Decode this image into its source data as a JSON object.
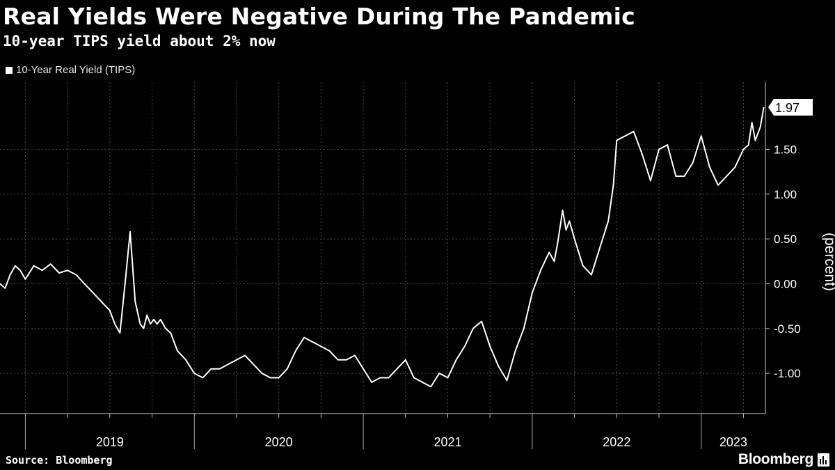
{
  "chart_data": {
    "type": "line",
    "title": "Real Yields Were Negative During The Pandemic",
    "subtitle": "10-year TIPS yield about 2% now",
    "ylabel": "(percent)",
    "xlabel": "",
    "source": "Source: Bloomberg",
    "brand": "Bloomberg",
    "ylim": [
      -1.45,
      2.25
    ],
    "xlim": [
      2018.85,
      2023.38
    ],
    "y_ticks": [
      1.5,
      1.0,
      0.5,
      0.0,
      -0.5,
      -1.0
    ],
    "y_tick_labels": [
      "1.50",
      "1.00",
      "0.50",
      "0.00",
      "-0.50",
      "-1.00"
    ],
    "x_year_labels": [
      {
        "label": "2019",
        "x": 2019.0
      },
      {
        "label": "2020",
        "x": 2020.0
      },
      {
        "label": "2021",
        "x": 2021.0
      },
      {
        "label": "2022",
        "x": 2022.0
      },
      {
        "label": "2023",
        "x": 2023.0
      }
    ],
    "x_year_dividers": [
      2019.0,
      2020.0,
      2021.0,
      2022.0,
      2023.0
    ],
    "x_quarter_gridlines": [
      2019.25,
      2019.5,
      2019.75,
      2020.25,
      2020.5,
      2020.75,
      2021.25,
      2021.5,
      2021.75,
      2022.25,
      2022.5,
      2022.75,
      2023.25
    ],
    "last_value_label": "1.97",
    "grid": true,
    "legend_position": "top-left",
    "colors": {
      "background": "#000000",
      "line": "#ffffff",
      "grid": "#4a4a4a"
    },
    "series": [
      {
        "name": "10-Year Real Yield (TIPS)",
        "x": [
          2018.85,
          2018.88,
          2018.91,
          2018.94,
          2018.97,
          2019.0,
          2019.05,
          2019.1,
          2019.15,
          2019.2,
          2019.25,
          2019.3,
          2019.35,
          2019.4,
          2019.45,
          2019.5,
          2019.53,
          2019.56,
          2019.59,
          2019.62,
          2019.65,
          2019.68,
          2019.7,
          2019.72,
          2019.74,
          2019.76,
          2019.78,
          2019.8,
          2019.83,
          2019.86,
          2019.9,
          2019.95,
          2020.0,
          2020.05,
          2020.1,
          2020.15,
          2020.2,
          2020.25,
          2020.3,
          2020.35,
          2020.4,
          2020.45,
          2020.5,
          2020.55,
          2020.6,
          2020.65,
          2020.7,
          2020.75,
          2020.8,
          2020.85,
          2020.9,
          2020.95,
          2021.0,
          2021.05,
          2021.1,
          2021.15,
          2021.2,
          2021.25,
          2021.3,
          2021.35,
          2021.4,
          2021.45,
          2021.5,
          2021.55,
          2021.6,
          2021.65,
          2021.7,
          2021.75,
          2021.8,
          2021.85,
          2021.9,
          2021.95,
          2022.0,
          2022.05,
          2022.1,
          2022.13,
          2022.15,
          2022.18,
          2022.2,
          2022.22,
          2022.25,
          2022.3,
          2022.35,
          2022.4,
          2022.45,
          2022.48,
          2022.5,
          2022.55,
          2022.6,
          2022.65,
          2022.7,
          2022.75,
          2022.8,
          2022.85,
          2022.9,
          2022.95,
          2023.0,
          2023.05,
          2023.1,
          2023.15,
          2023.2,
          2023.25,
          2023.28,
          2023.3,
          2023.32,
          2023.35,
          2023.37
        ],
        "values": [
          0.0,
          -0.05,
          0.1,
          0.2,
          0.15,
          0.05,
          0.2,
          0.15,
          0.22,
          0.12,
          0.15,
          0.1,
          0.0,
          -0.1,
          -0.2,
          -0.3,
          -0.45,
          -0.55,
          0.0,
          0.58,
          -0.2,
          -0.45,
          -0.5,
          -0.35,
          -0.45,
          -0.4,
          -0.45,
          -0.4,
          -0.5,
          -0.55,
          -0.75,
          -0.85,
          -1.0,
          -1.05,
          -0.95,
          -0.95,
          -0.9,
          -0.85,
          -0.8,
          -0.9,
          -1.0,
          -1.05,
          -1.05,
          -0.95,
          -0.75,
          -0.6,
          -0.65,
          -0.7,
          -0.75,
          -0.85,
          -0.85,
          -0.8,
          -0.95,
          -1.1,
          -1.05,
          -1.05,
          -0.95,
          -0.85,
          -1.05,
          -1.1,
          -1.15,
          -1.0,
          -1.05,
          -0.85,
          -0.7,
          -0.5,
          -0.42,
          -0.7,
          -0.92,
          -1.08,
          -0.75,
          -0.5,
          -0.1,
          0.15,
          0.35,
          0.25,
          0.45,
          0.82,
          0.6,
          0.7,
          0.5,
          0.2,
          0.1,
          0.4,
          0.7,
          1.1,
          1.6,
          1.65,
          1.7,
          1.45,
          1.15,
          1.5,
          1.55,
          1.2,
          1.2,
          1.35,
          1.65,
          1.3,
          1.1,
          1.2,
          1.3,
          1.5,
          1.55,
          1.8,
          1.6,
          1.75,
          1.97
        ]
      }
    ]
  }
}
